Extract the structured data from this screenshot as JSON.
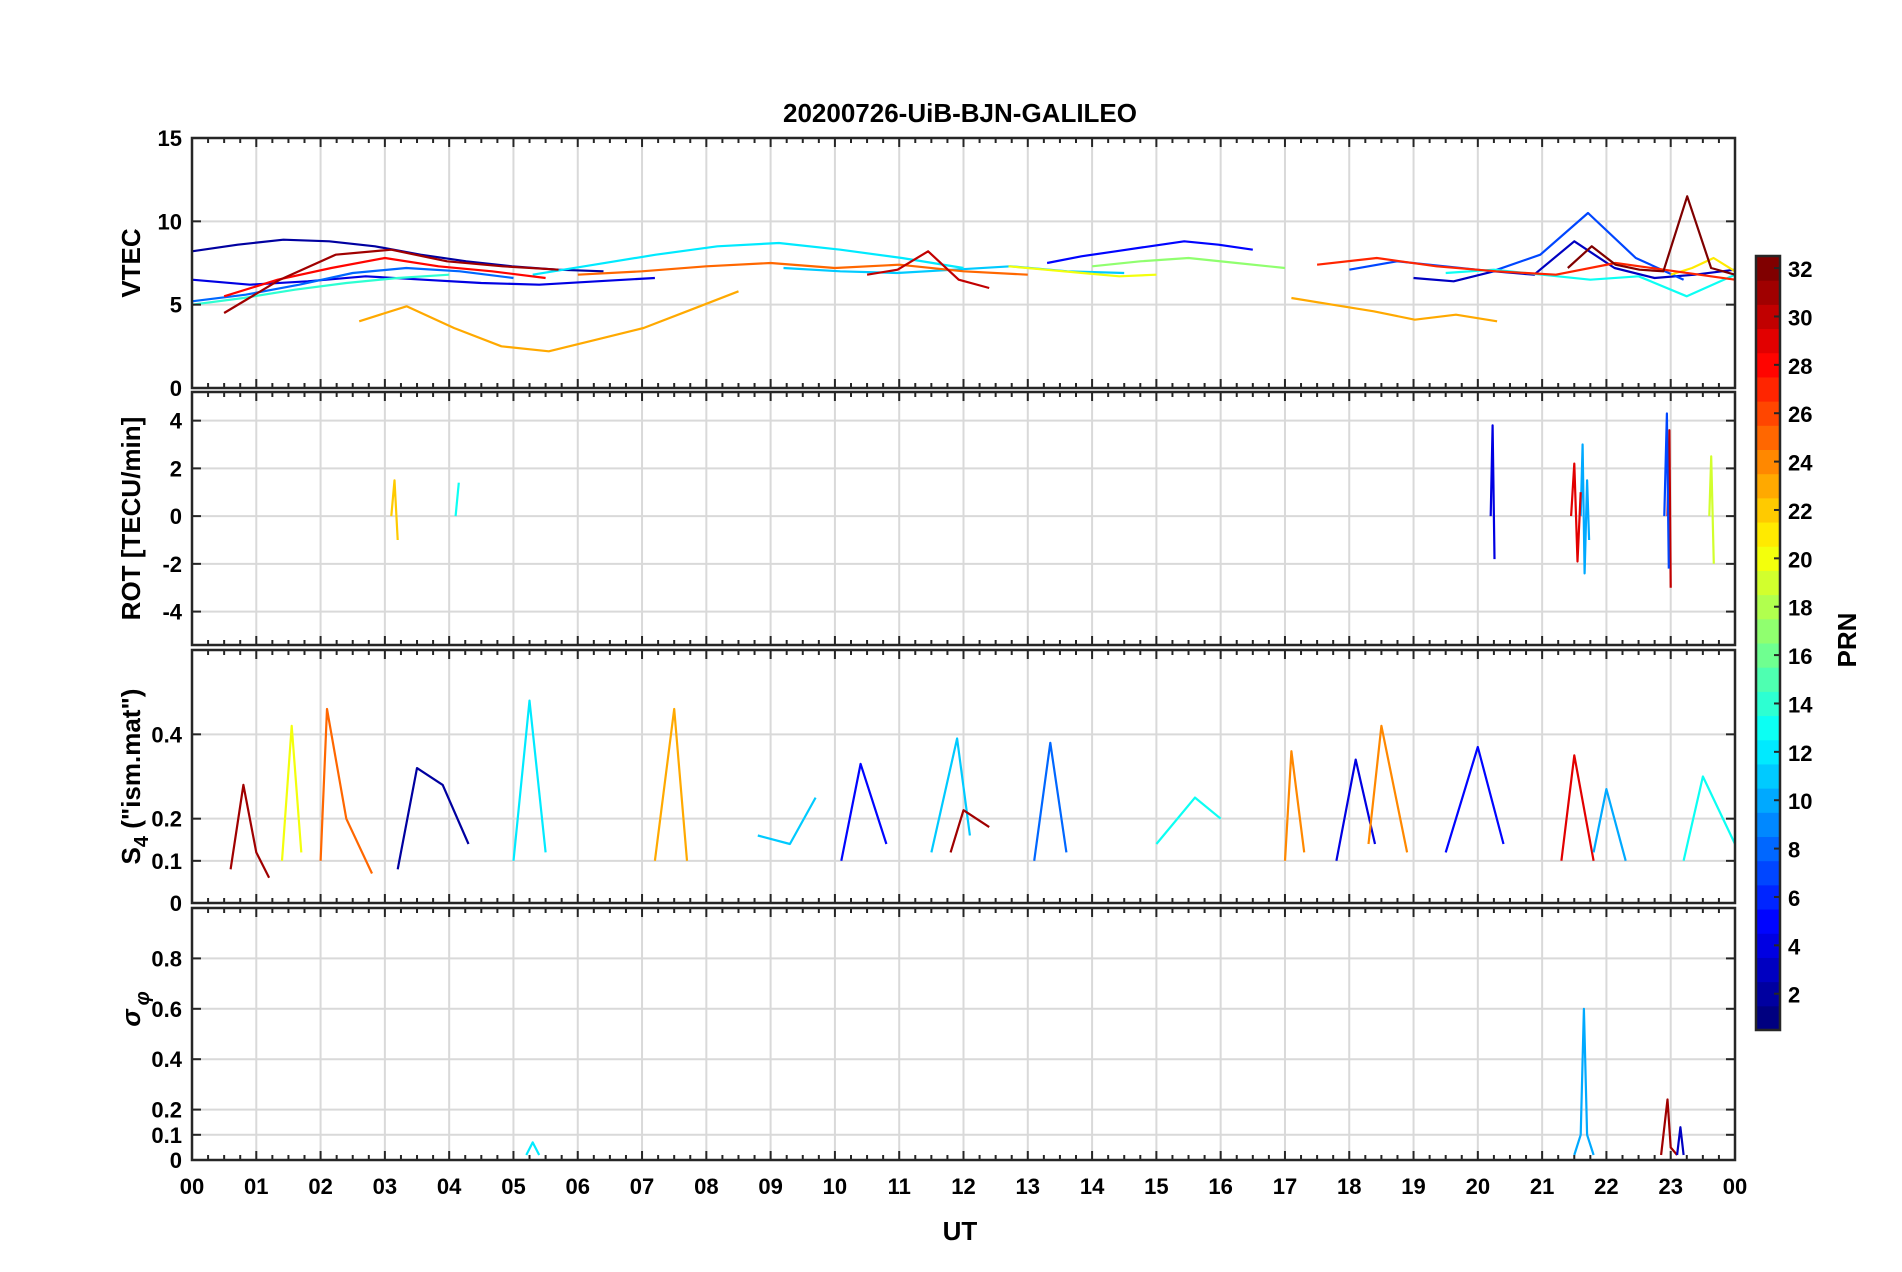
{
  "figure": {
    "title": "20200726-UiB-BJN-GALILEO"
  },
  "colormap": "jet",
  "colorbar": {
    "label": "PRN",
    "range": [
      1,
      32
    ],
    "ticks": [
      "2",
      "4",
      "6",
      "8",
      "10",
      "12",
      "14",
      "16",
      "18",
      "20",
      "22",
      "24",
      "26",
      "28",
      "30",
      "32"
    ]
  },
  "x_axis": {
    "label": "UT",
    "range_hours": [
      0,
      24
    ],
    "ticks": [
      "00",
      "01",
      "02",
      "03",
      "04",
      "05",
      "06",
      "07",
      "08",
      "09",
      "10",
      "11",
      "12",
      "13",
      "14",
      "15",
      "16",
      "17",
      "18",
      "19",
      "20",
      "21",
      "22",
      "23",
      "00"
    ]
  },
  "chart_data": [
    {
      "type": "line",
      "panel": "vtec",
      "ylabel": "VTEC",
      "ylim": [
        0,
        15
      ],
      "yticks": [
        "0",
        "5",
        "10",
        "15"
      ],
      "ytick_values": [
        0,
        5,
        10,
        15
      ],
      "grid": true,
      "series": [
        {
          "prn": 2,
          "start": 0.0,
          "end": 6.4,
          "values": [
            8.2,
            8.6,
            8.9,
            8.8,
            8.5,
            8.0,
            7.6,
            7.3,
            7.1,
            7.0
          ]
        },
        {
          "prn": 4,
          "start": 0.0,
          "end": 7.2,
          "values": [
            6.5,
            6.2,
            6.4,
            6.7,
            6.5,
            6.3,
            6.2,
            6.4,
            6.6
          ]
        },
        {
          "prn": 5,
          "start": 13.3,
          "end": 16.5,
          "values": [
            7.5,
            7.9,
            8.2,
            8.5,
            8.8,
            8.6,
            8.3
          ]
        },
        {
          "prn": 3,
          "start": 19.0,
          "end": 24.0,
          "values": [
            6.6,
            6.4,
            7.0,
            6.8,
            8.8,
            7.2,
            6.6,
            6.8,
            7.1
          ]
        },
        {
          "prn": 7,
          "start": 18.0,
          "end": 23.2,
          "values": [
            7.1,
            7.6,
            7.3,
            7.0,
            8.0,
            10.5,
            7.8,
            6.5
          ]
        },
        {
          "prn": 8,
          "start": 0.0,
          "end": 5.0,
          "values": [
            5.2,
            5.6,
            6.2,
            6.9,
            7.2,
            7.0,
            6.6
          ]
        },
        {
          "prn": 11,
          "start": 9.2,
          "end": 14.5,
          "values": [
            7.2,
            7.0,
            6.9,
            7.1,
            7.3,
            7.0,
            6.9
          ]
        },
        {
          "prn": 12,
          "start": 5.3,
          "end": 12.0,
          "values": [
            6.8,
            7.4,
            8.0,
            8.5,
            8.7,
            8.3,
            7.8,
            7.2
          ]
        },
        {
          "prn": 13,
          "start": 19.5,
          "end": 24.0,
          "values": [
            6.9,
            7.1,
            6.8,
            6.5,
            6.7,
            5.5,
            6.8
          ]
        },
        {
          "prn": 14,
          "start": 0.0,
          "end": 4.0,
          "values": [
            5.0,
            5.4,
            5.9,
            6.3,
            6.6,
            6.8
          ]
        },
        {
          "prn": 17,
          "start": 14.0,
          "end": 17.0,
          "values": [
            7.3,
            7.6,
            7.8,
            7.5,
            7.2
          ]
        },
        {
          "prn": 20,
          "start": 12.7,
          "end": 15.0,
          "values": [
            7.3,
            7.1,
            6.9,
            6.7,
            6.8
          ]
        },
        {
          "prn": 21,
          "start": 23.0,
          "end": 24.0,
          "values": [
            6.8,
            7.2,
            7.8,
            7.0
          ]
        },
        {
          "prn": 23,
          "start": 2.6,
          "end": 8.5,
          "values": [
            4.0,
            4.9,
            3.6,
            2.5,
            2.2,
            2.9,
            3.6,
            4.7,
            5.8
          ]
        },
        {
          "prn": 23,
          "start": 17.1,
          "end": 20.3,
          "values": [
            5.4,
            5.0,
            4.6,
            4.1,
            4.4,
            4.0
          ]
        },
        {
          "prn": 25,
          "start": 6.0,
          "end": 13.0,
          "values": [
            6.8,
            7.0,
            7.3,
            7.5,
            7.2,
            7.4,
            7.0,
            6.8
          ]
        },
        {
          "prn": 27,
          "start": 17.5,
          "end": 24.0,
          "values": [
            7.4,
            7.8,
            7.3,
            7.0,
            6.8,
            7.5,
            7.0,
            6.5
          ]
        },
        {
          "prn": 28,
          "start": 0.5,
          "end": 5.5,
          "values": [
            5.5,
            6.5,
            7.2,
            7.8,
            7.3,
            7.0,
            6.6
          ]
        },
        {
          "prn": 31,
          "start": 0.5,
          "end": 5.7,
          "values": [
            4.5,
            6.5,
            8.0,
            8.3,
            7.6,
            7.3,
            7.1
          ]
        },
        {
          "prn": 30,
          "start": 10.5,
          "end": 12.4,
          "values": [
            6.8,
            7.1,
            8.2,
            6.5,
            6.0
          ]
        },
        {
          "prn": 32,
          "start": 21.4,
          "end": 24.0,
          "values": [
            7.2,
            8.5,
            7.4,
            7.1,
            7.0,
            11.5,
            7.2,
            6.8
          ]
        }
      ]
    },
    {
      "type": "line",
      "panel": "rot",
      "ylabel": "ROT [TECU/min]",
      "ylim": [
        -5.4,
        5.2
      ],
      "yticks": [
        "-4",
        "-2",
        "0",
        "2",
        "4"
      ],
      "ytick_values": [
        -4,
        -2,
        0,
        2,
        4
      ],
      "grid": true,
      "series": [
        {
          "prn": 4,
          "x": [
            20.2,
            20.23,
            20.26
          ],
          "values": [
            0.0,
            3.8,
            -1.8
          ]
        },
        {
          "prn": 10,
          "x": [
            21.6,
            21.63,
            21.66,
            21.7,
            21.73
          ],
          "values": [
            0.0,
            3.0,
            -2.4,
            1.5,
            -1.0
          ]
        },
        {
          "prn": 29,
          "x": [
            21.45,
            21.5,
            21.55,
            21.6
          ],
          "values": [
            0.0,
            2.2,
            -1.9,
            1.0
          ]
        },
        {
          "prn": 30,
          "x": [
            22.95,
            22.98,
            23.0
          ],
          "values": [
            0.0,
            3.6,
            -3.0
          ]
        },
        {
          "prn": 7,
          "x": [
            22.9,
            22.94,
            22.97
          ],
          "values": [
            0.0,
            4.3,
            -2.2
          ]
        },
        {
          "prn": 19,
          "x": [
            23.6,
            23.63,
            23.67
          ],
          "values": [
            0.0,
            2.5,
            -2.0
          ]
        },
        {
          "prn": 22,
          "x": [
            3.1,
            3.15,
            3.2
          ],
          "values": [
            0.0,
            1.5,
            -1.0
          ]
        },
        {
          "prn": 13,
          "x": [
            4.1,
            4.15
          ],
          "values": [
            0.0,
            1.4
          ]
        }
      ]
    },
    {
      "type": "line",
      "panel": "s4",
      "ylabel": "S4 (\"ism.mat\")",
      "ylim": [
        0,
        0.6
      ],
      "yticks": [
        "0",
        "0.1",
        "0.2",
        "0.4"
      ],
      "ytick_values": [
        0,
        0.1,
        0.2,
        0.4
      ],
      "grid": true,
      "series": [
        {
          "prn": 31,
          "x": [
            0.6,
            0.8,
            1.0,
            1.2
          ],
          "values": [
            0.08,
            0.28,
            0.12,
            0.06
          ]
        },
        {
          "prn": 20,
          "x": [
            1.4,
            1.55,
            1.7
          ],
          "values": [
            0.1,
            0.42,
            0.12
          ]
        },
        {
          "prn": 25,
          "x": [
            2.0,
            2.1,
            2.4,
            2.8
          ],
          "values": [
            0.1,
            0.46,
            0.2,
            0.07
          ]
        },
        {
          "prn": 2,
          "x": [
            3.2,
            3.5,
            3.9,
            4.3
          ],
          "values": [
            0.08,
            0.32,
            0.28,
            0.14
          ]
        },
        {
          "prn": 12,
          "x": [
            5.0,
            5.25,
            5.5
          ],
          "values": [
            0.1,
            0.48,
            0.12
          ]
        },
        {
          "prn": 23,
          "x": [
            7.2,
            7.5,
            7.7
          ],
          "values": [
            0.1,
            0.46,
            0.1
          ]
        },
        {
          "prn": 11,
          "x": [
            8.8,
            9.3,
            9.7
          ],
          "values": [
            0.16,
            0.14,
            0.25
          ]
        },
        {
          "prn": 5,
          "x": [
            10.1,
            10.4,
            10.8
          ],
          "values": [
            0.1,
            0.33,
            0.14
          ]
        },
        {
          "prn": 11,
          "x": [
            11.5,
            11.9,
            12.1
          ],
          "values": [
            0.12,
            0.39,
            0.16
          ]
        },
        {
          "prn": 31,
          "x": [
            11.8,
            12.0,
            12.4
          ],
          "values": [
            0.12,
            0.22,
            0.18
          ]
        },
        {
          "prn": 8,
          "x": [
            13.1,
            13.35,
            13.6
          ],
          "values": [
            0.1,
            0.38,
            0.12
          ]
        },
        {
          "prn": 13,
          "x": [
            15.0,
            15.6,
            16.0
          ],
          "values": [
            0.14,
            0.25,
            0.2
          ]
        },
        {
          "prn": 24,
          "x": [
            17.0,
            17.1,
            17.3
          ],
          "values": [
            0.1,
            0.36,
            0.12
          ]
        },
        {
          "prn": 4,
          "x": [
            17.8,
            18.1,
            18.4
          ],
          "values": [
            0.1,
            0.34,
            0.14
          ]
        },
        {
          "prn": 24,
          "x": [
            18.3,
            18.5,
            18.9
          ],
          "values": [
            0.14,
            0.42,
            0.12
          ]
        },
        {
          "prn": 5,
          "x": [
            19.5,
            20.0,
            20.4
          ],
          "values": [
            0.12,
            0.37,
            0.14
          ]
        },
        {
          "prn": 29,
          "x": [
            21.3,
            21.5,
            21.8
          ],
          "values": [
            0.1,
            0.35,
            0.1
          ]
        },
        {
          "prn": 10,
          "x": [
            21.8,
            22.0,
            22.3
          ],
          "values": [
            0.12,
            0.27,
            0.1
          ]
        },
        {
          "prn": 13,
          "x": [
            23.2,
            23.5,
            24.0
          ],
          "values": [
            0.1,
            0.3,
            0.14
          ]
        }
      ]
    },
    {
      "type": "line",
      "panel": "sigma_phi",
      "ylabel": "σφ",
      "ylim": [
        0,
        1.0
      ],
      "yticks": [
        "0",
        "0.1",
        "0.2",
        "0.4",
        "0.6",
        "0.8"
      ],
      "ytick_values": [
        0,
        0.1,
        0.2,
        0.4,
        0.6,
        0.8
      ],
      "grid": true,
      "series": [
        {
          "prn": 10,
          "x": [
            21.5,
            21.6,
            21.65,
            21.7,
            21.8
          ],
          "values": [
            0.02,
            0.1,
            0.6,
            0.1,
            0.02
          ]
        },
        {
          "prn": 31,
          "x": [
            22.85,
            22.95,
            23.0,
            23.1
          ],
          "values": [
            0.02,
            0.24,
            0.05,
            0.02
          ]
        },
        {
          "prn": 3,
          "x": [
            23.1,
            23.15,
            23.2
          ],
          "values": [
            0.02,
            0.13,
            0.02
          ]
        },
        {
          "prn": 12,
          "x": [
            5.2,
            5.3,
            5.4
          ],
          "values": [
            0.02,
            0.07,
            0.02
          ]
        }
      ]
    }
  ]
}
